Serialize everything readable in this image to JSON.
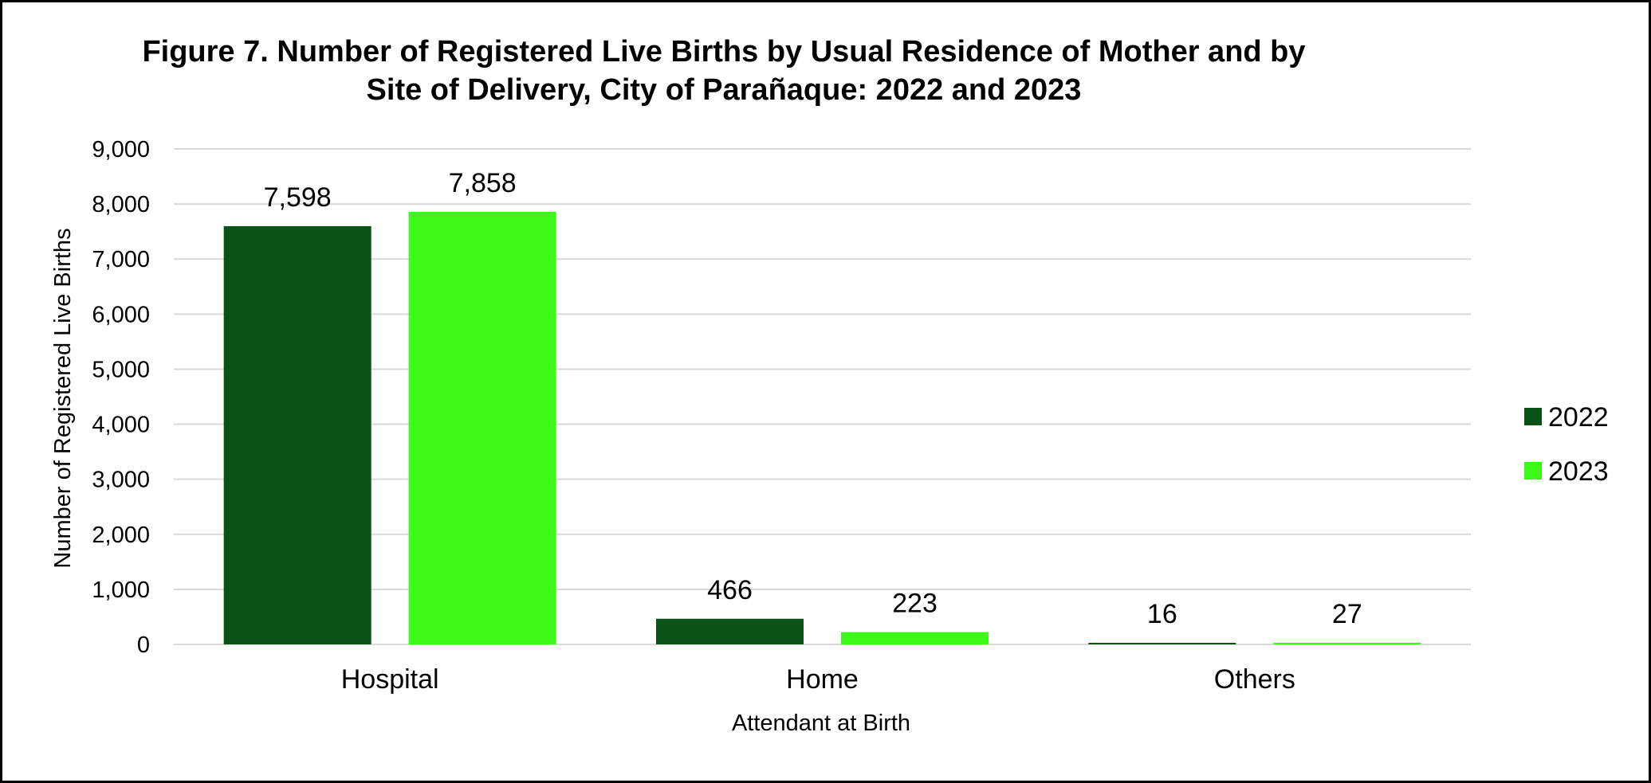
{
  "chart_data": {
    "type": "bar",
    "title": "Figure 7. Number of Registered Live Births by Usual Residence of Mother and by Site of Delivery, City of Parañaque: 2022 and 2023",
    "title_lines": [
      "Figure 7. Number of Registered Live Births by Usual Residence of Mother and by",
      "Site of Delivery, City of Parañaque: 2022 and 2023"
    ],
    "xlabel": "Attendant at Birth",
    "ylabel": "Number of Registered Live Births",
    "ylim": [
      0,
      9000
    ],
    "yticks": [
      0,
      1000,
      2000,
      3000,
      4000,
      5000,
      6000,
      7000,
      8000,
      9000
    ],
    "ytick_labels": [
      "0",
      "1,000",
      "2,000",
      "3,000",
      "4,000",
      "5,000",
      "6,000",
      "7,000",
      "8,000",
      "9,000"
    ],
    "categories": [
      "Hospital",
      "Home",
      "Others"
    ],
    "series": [
      {
        "name": "2022",
        "color": "#0b5216",
        "values": [
          7598,
          466,
          16
        ],
        "labels": [
          "7,598",
          "466",
          "16"
        ]
      },
      {
        "name": "2023",
        "color": "#3dfa1b",
        "values": [
          7858,
          223,
          27
        ],
        "labels": [
          "7,858",
          "223",
          "27"
        ]
      }
    ],
    "grid": true,
    "legend_position": "right"
  }
}
